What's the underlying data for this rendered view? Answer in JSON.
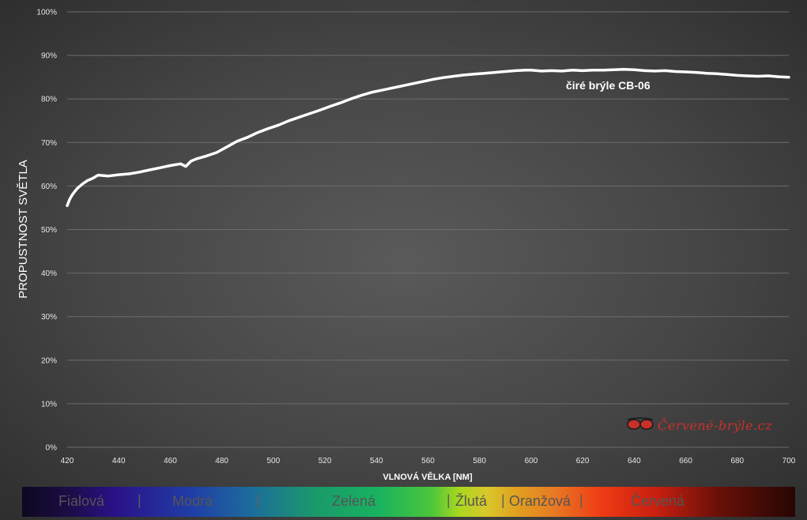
{
  "chart_data": {
    "type": "line",
    "title": "",
    "xlabel": "VLNOVÁ VĚLKA [NM]",
    "ylabel": "PROPUSTNOST SVĚTLA",
    "xlim": [
      420,
      700
    ],
    "ylim": [
      0,
      100
    ],
    "x_ticks": [
      "420",
      "440",
      "460",
      "480",
      "500",
      "520",
      "540",
      "560",
      "580",
      "600",
      "620",
      "640",
      "660",
      "680",
      "700"
    ],
    "y_ticks": [
      "0%",
      "10%",
      "20%",
      "30%",
      "40%",
      "50%",
      "60%",
      "70%",
      "80%",
      "90%",
      "100%"
    ],
    "grid": true,
    "series": [
      {
        "name": "čiré brýle CB-06",
        "color": "#ffffff",
        "x": [
          420,
          421,
          422,
          423,
          424,
          426,
          428,
          430,
          432,
          436,
          440,
          444,
          448,
          452,
          456,
          460,
          464,
          466,
          468,
          470,
          474,
          478,
          482,
          486,
          490,
          494,
          498,
          502,
          506,
          510,
          514,
          518,
          522,
          526,
          530,
          534,
          538,
          542,
          546,
          550,
          554,
          558,
          562,
          566,
          570,
          574,
          578,
          582,
          586,
          590,
          594,
          598,
          600,
          604,
          608,
          612,
          616,
          620,
          624,
          628,
          632,
          636,
          640,
          644,
          648,
          652,
          656,
          660,
          664,
          668,
          672,
          676,
          680,
          684,
          688,
          692,
          696,
          700
        ],
        "y": [
          55.5,
          57,
          58,
          58.8,
          59.5,
          60.5,
          61.3,
          61.8,
          62.5,
          62.3,
          62.6,
          62.8,
          63.2,
          63.7,
          64.2,
          64.7,
          65.1,
          64.5,
          65.7,
          66.2,
          66.9,
          67.7,
          69.0,
          70.3,
          71.2,
          72.3,
          73.2,
          74.0,
          75.0,
          75.8,
          76.6,
          77.4,
          78.3,
          79.1,
          80.0,
          80.8,
          81.5,
          82.0,
          82.5,
          83.0,
          83.5,
          84.0,
          84.5,
          84.9,
          85.2,
          85.5,
          85.7,
          85.9,
          86.1,
          86.3,
          86.5,
          86.6,
          86.6,
          86.4,
          86.5,
          86.4,
          86.6,
          86.5,
          86.6,
          86.6,
          86.7,
          86.8,
          86.7,
          86.5,
          86.4,
          86.5,
          86.3,
          86.2,
          86.1,
          85.9,
          85.8,
          85.6,
          85.4,
          85.3,
          85.2,
          85.3,
          85.1,
          85.0
        ]
      }
    ],
    "legend": "inline-label"
  },
  "spectrum": {
    "bands": [
      {
        "label": "Fialová"
      },
      {
        "label": "Modrá"
      },
      {
        "label": "Zelená"
      },
      {
        "label": "Žlutá"
      },
      {
        "label": "Oranžová"
      },
      {
        "label": "Červená"
      }
    ],
    "separator": "|"
  },
  "logo": {
    "text": "Červené-brýle.cz",
    "icon": "glasses-icon",
    "color": "#c8302a"
  }
}
